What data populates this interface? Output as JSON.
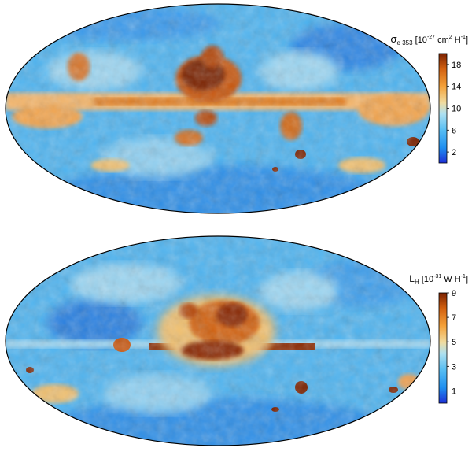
{
  "figure": {
    "panels": [
      {
        "id": "top",
        "colorbar": {
          "symbol": "σ",
          "subscript": "e 353",
          "units_pre": " [10",
          "units_exp": "-27",
          "units_post": " cm",
          "units_exp2": "2",
          "units_post2": " H",
          "units_exp3": "-1",
          "units_close": "]",
          "ticks": [
            "18",
            "14",
            "10",
            "6",
            "2"
          ],
          "range": [
            0,
            20
          ]
        }
      },
      {
        "id": "bottom",
        "colorbar": {
          "symbol": "L",
          "subscript": "H",
          "units_pre": " [10",
          "units_exp": "-31",
          "units_post": " W H",
          "units_exp3": "-1",
          "units_close": "]",
          "ticks": [
            "9",
            "7",
            "5",
            "3",
            "1"
          ],
          "range": [
            0,
            9
          ]
        }
      }
    ],
    "colormap": [
      "#1d2fd6",
      "#1f8ff0",
      "#56bdf3",
      "#aee0f0",
      "#f0dca0",
      "#f4a23a",
      "#d2600f",
      "#7a2100"
    ]
  }
}
